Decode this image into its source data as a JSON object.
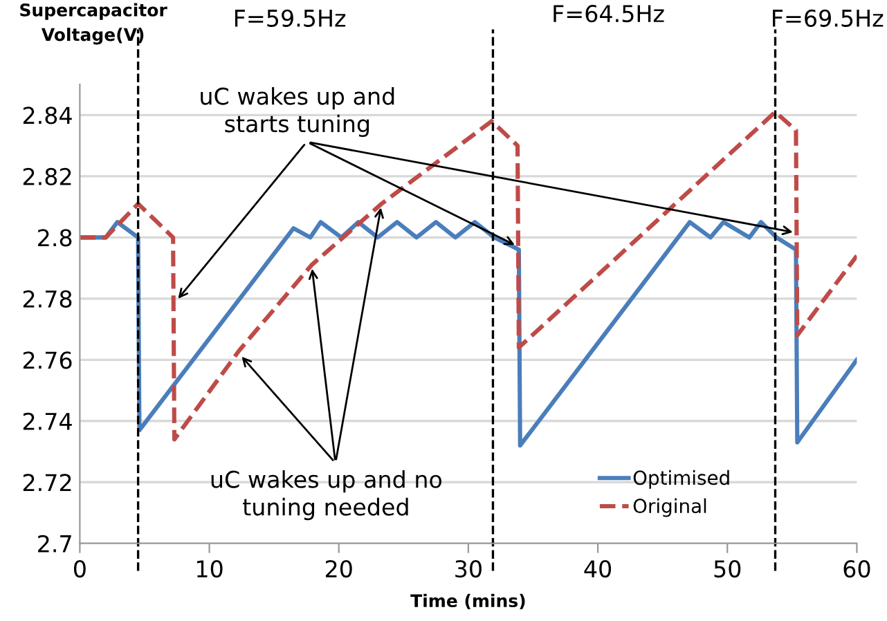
{
  "chart_data": {
    "type": "line",
    "xlabel": "Time (mins)",
    "ylabel": "Supercapacitor\nVoltage(V)",
    "xlim": [
      0,
      60
    ],
    "xticks": [
      0,
      10,
      20,
      30,
      40,
      50,
      60
    ],
    "ylim": [
      2.7,
      2.85
    ],
    "yticks": [
      {
        "value": 2.7,
        "label": "2.7"
      },
      2.72,
      2.74,
      2.76,
      2.78,
      {
        "value": 2.8,
        "label": "2.8"
      },
      2.82,
      2.84
    ],
    "grid": "y",
    "legend": "bottom right",
    "marker": "none",
    "series": [
      {
        "name": "Optimised",
        "color": "#4a7ebb",
        "line_style": "solid",
        "x": [
          0,
          2,
          2.9,
          4.5,
          4.6,
          16.5,
          17.8,
          18.6,
          20.2,
          21.5,
          23.0,
          24.5,
          26.0,
          27.5,
          29.0,
          30.5,
          32.0,
          33.9,
          34.0,
          47.1,
          48.7,
          49.7,
          51.7,
          52.6,
          53.8,
          55.3,
          55.4,
          60
        ],
        "values": [
          2.8,
          2.8,
          2.805,
          2.8,
          2.737,
          2.803,
          2.8,
          2.805,
          2.8,
          2.805,
          2.8,
          2.805,
          2.8,
          2.805,
          2.8,
          2.805,
          2.8,
          2.796,
          2.732,
          2.805,
          2.8,
          2.805,
          2.8,
          2.805,
          2.8,
          2.796,
          2.733,
          2.76
        ]
      },
      {
        "name": "Original",
        "color": "#be4b48",
        "line_style": "dashed",
        "x": [
          0,
          2,
          4.5,
          7.2,
          7.3,
          12.3,
          17.9,
          23.3,
          31.8,
          33.8,
          33.9,
          53.7,
          55.3,
          55.4,
          60
        ],
        "values": [
          2.8,
          2.8,
          2.811,
          2.8,
          2.734,
          2.763,
          2.791,
          2.811,
          2.838,
          2.83,
          2.764,
          2.841,
          2.835,
          2.768,
          2.794
        ]
      }
    ],
    "ref_lines": [
      {
        "axis": "x",
        "value": 4.5,
        "color": "#000000",
        "line_style": "dashed"
      },
      {
        "axis": "x",
        "value": 31.9,
        "color": "#000000",
        "line_style": "dashed"
      },
      {
        "axis": "x",
        "value": 53.7,
        "color": "#000000",
        "line_style": "dashed"
      }
    ],
    "annotations": [
      {
        "text": "uC wakes up and\nstarts tuning",
        "x": 7.4,
        "y": 2.779
      },
      {
        "text": "uC wakes up and no\ntuning needed",
        "x": 12.3,
        "y": 2.762
      },
      "F=59.5Hz",
      "F=64.5Hz",
      "F=69.5Hz"
    ]
  }
}
